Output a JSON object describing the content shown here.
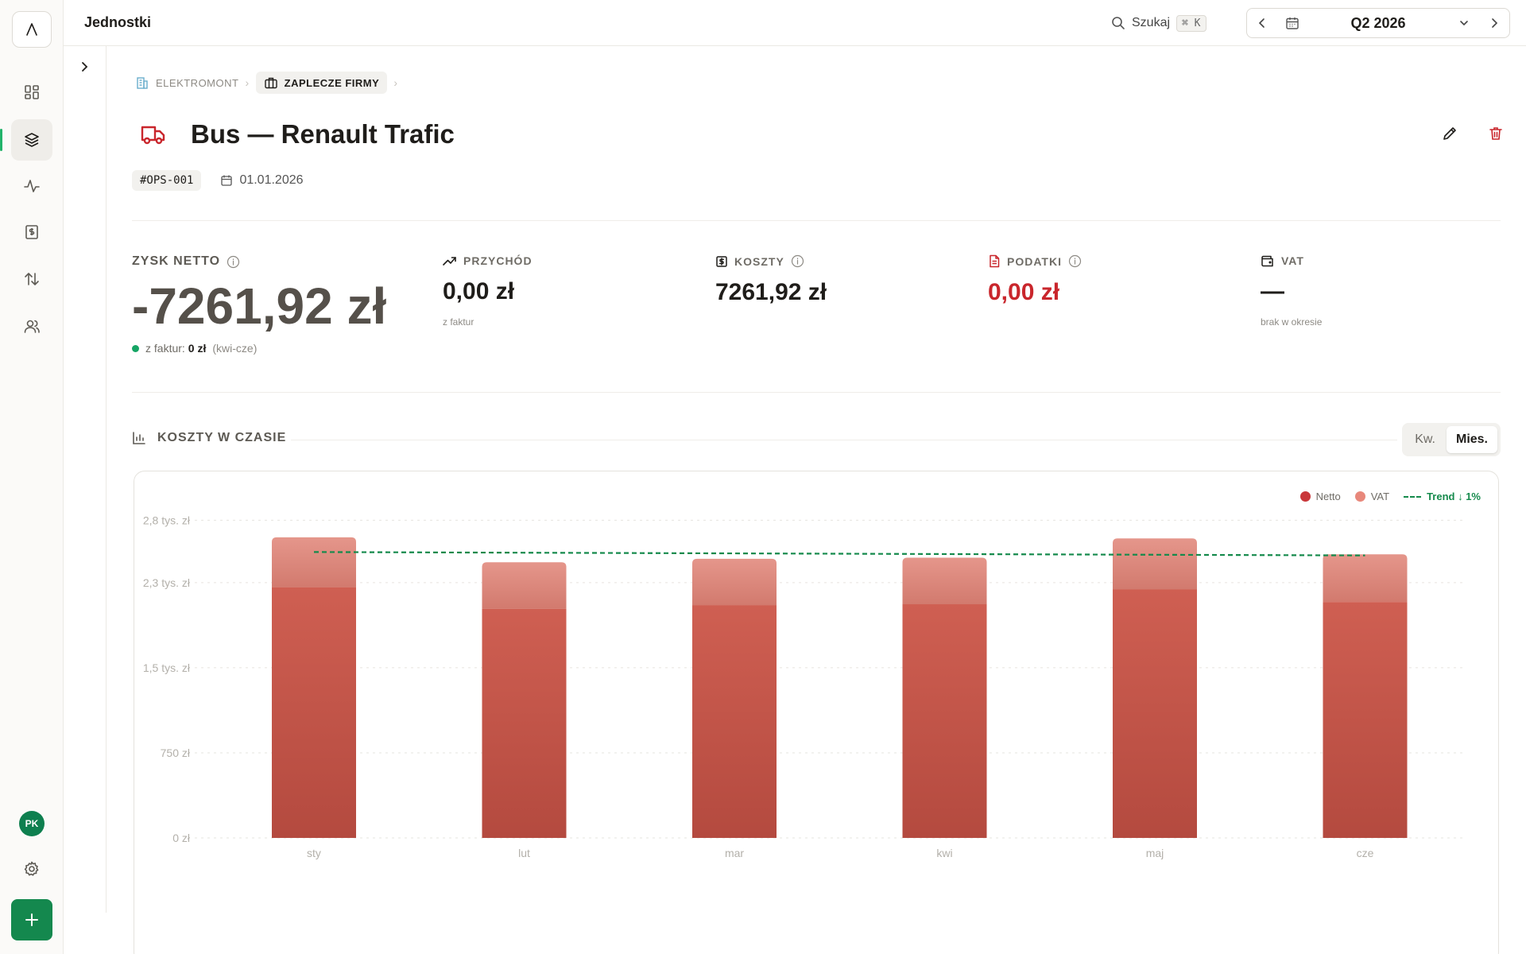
{
  "app": {
    "page_title": "Jednostki"
  },
  "topbar": {
    "search_label": "Szukaj",
    "search_shortcut": "⌘ K",
    "period_label": "Q2 2026"
  },
  "breadcrumb": [
    {
      "label": "ELEKTROMONT",
      "icon": "building-icon"
    },
    {
      "label": "ZAPLECZE FIRMY",
      "icon": "briefcase-icon"
    }
  ],
  "entity": {
    "title": "Bus — Renault Trafic",
    "icon": "truck-icon",
    "code": "#OPS-001",
    "date": "01.01.2026"
  },
  "kpis": {
    "net_profit": {
      "label": "ZYSK NETTO",
      "value": "-7261,92 zł",
      "note_prefix": "z faktur:",
      "note_value": "0 zł",
      "note_range": "(kwi-cze)"
    },
    "revenue": {
      "label": "PRZYCHÓD",
      "value": "0,00 zł",
      "sub": "z faktur"
    },
    "costs": {
      "label": "KOSZTY",
      "value": "7261,92 zł"
    },
    "taxes": {
      "label": "PODATKI",
      "value": "0,00 zł"
    },
    "vat": {
      "label": "VAT",
      "value": "—",
      "sub": "brak w okresie"
    }
  },
  "section": {
    "title": "KOSZTY W CZASIE",
    "toggle": [
      {
        "label": "Kw.",
        "active": false
      },
      {
        "label": "Mies.",
        "active": true
      }
    ]
  },
  "user": {
    "initials": "PK"
  },
  "colors": {
    "accent_green": "#14884e",
    "negative_red": "#c9262c",
    "bar_netto": "#c4473c",
    "bar_vat": "#e08a7f",
    "trend": "#158a4c"
  },
  "chart_data": {
    "type": "bar",
    "stacked": true,
    "categories": [
      "sty",
      "lut",
      "mar",
      "kwi",
      "maj",
      "cze"
    ],
    "series": [
      {
        "name": "Netto",
        "values": [
          2210,
          2020,
          2050,
          2060,
          2190,
          2080
        ]
      },
      {
        "name": "VAT",
        "values": [
          440,
          410,
          410,
          410,
          450,
          420
        ]
      }
    ],
    "trend": {
      "label": "Trend ↓ 1%",
      "start": 2520,
      "end": 2490
    },
    "y_ticks": [
      {
        "value": 0,
        "label": "0 zł"
      },
      {
        "value": 750,
        "label": "750 zł"
      },
      {
        "value": 1500,
        "label": "1,5 tys. zł"
      },
      {
        "value": 2250,
        "label": "2,3 tys. zł"
      },
      {
        "value": 2800,
        "label": "2,8 tys. zł"
      }
    ],
    "ylim": [
      0,
      2950
    ],
    "grid": true,
    "legend_position": "top-right"
  }
}
